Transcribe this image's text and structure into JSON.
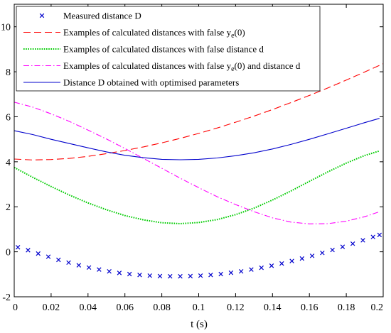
{
  "chart_data": {
    "type": "line",
    "title": "",
    "xlabel": "t (s)",
    "ylabel": "",
    "xlim": [
      0,
      0.2
    ],
    "ylim": [
      -2,
      11
    ],
    "xticks": [
      "0",
      "0.02",
      "0.04",
      "0.06",
      "0.08",
      "0.1",
      "0.12",
      "0.14",
      "0.16",
      "0.18",
      "0.2"
    ],
    "yticks": [
      "-2",
      "0",
      "2",
      "4",
      "6",
      "8",
      "10"
    ],
    "grid": false,
    "legend_position": "top-left",
    "series": [
      {
        "name": "Measured distance D",
        "style": "marker-x",
        "color": "#0000cc",
        "x": [
          0.002,
          0.0075,
          0.013,
          0.0185,
          0.024,
          0.0295,
          0.035,
          0.0405,
          0.046,
          0.0515,
          0.057,
          0.0625,
          0.068,
          0.0735,
          0.079,
          0.0845,
          0.09,
          0.0955,
          0.101,
          0.1065,
          0.112,
          0.1175,
          0.123,
          0.1285,
          0.134,
          0.1395,
          0.145,
          0.1505,
          0.156,
          0.1615,
          0.167,
          0.1725,
          0.178,
          0.1835,
          0.189,
          0.1945,
          0.198
        ],
        "y": [
          0.2,
          0.07,
          -0.08,
          -0.22,
          -0.36,
          -0.48,
          -0.6,
          -0.7,
          -0.79,
          -0.87,
          -0.94,
          -0.99,
          -1.03,
          -1.06,
          -1.08,
          -1.09,
          -1.09,
          -1.08,
          -1.06,
          -1.03,
          -0.99,
          -0.93,
          -0.87,
          -0.79,
          -0.71,
          -0.62,
          -0.52,
          -0.41,
          -0.3,
          -0.18,
          -0.05,
          0.08,
          0.22,
          0.36,
          0.51,
          0.66,
          0.75
        ]
      },
      {
        "name": "Examples of calculated distances with false y_e(0)",
        "style": "dashed",
        "color": "#ff0000",
        "x": [
          0,
          0.01,
          0.02,
          0.03,
          0.04,
          0.05,
          0.06,
          0.07,
          0.08,
          0.09,
          0.1,
          0.11,
          0.12,
          0.13,
          0.14,
          0.15,
          0.16,
          0.17,
          0.18,
          0.19,
          0.2
        ],
        "y": [
          4.12,
          4.08,
          4.1,
          4.15,
          4.24,
          4.36,
          4.5,
          4.66,
          4.84,
          5.04,
          5.26,
          5.5,
          5.76,
          6.03,
          6.32,
          6.63,
          6.95,
          7.28,
          7.63,
          7.99,
          8.36
        ]
      },
      {
        "name": "Examples of calculated distances with false distance d",
        "style": "dotted",
        "color": "#00cc00",
        "x": [
          0,
          0.01,
          0.02,
          0.03,
          0.04,
          0.05,
          0.06,
          0.07,
          0.08,
          0.09,
          0.1,
          0.11,
          0.12,
          0.13,
          0.14,
          0.15,
          0.16,
          0.17,
          0.18,
          0.19,
          0.198
        ],
        "y": [
          3.75,
          3.31,
          2.9,
          2.52,
          2.17,
          1.87,
          1.61,
          1.42,
          1.29,
          1.25,
          1.3,
          1.43,
          1.65,
          1.94,
          2.3,
          2.7,
          3.13,
          3.55,
          3.94,
          4.28,
          4.48
        ]
      },
      {
        "name": "Examples of calculated distances with false y_e(0) and distance d",
        "style": "dash-dot",
        "color": "#ff00ff",
        "x": [
          0,
          0.01,
          0.02,
          0.03,
          0.04,
          0.05,
          0.06,
          0.07,
          0.08,
          0.09,
          0.1,
          0.11,
          0.12,
          0.13,
          0.14,
          0.15,
          0.16,
          0.17,
          0.18,
          0.19,
          0.198
        ],
        "y": [
          6.65,
          6.43,
          6.13,
          5.79,
          5.41,
          5.01,
          4.59,
          4.15,
          3.71,
          3.27,
          2.85,
          2.45,
          2.1,
          1.78,
          1.51,
          1.32,
          1.24,
          1.25,
          1.36,
          1.56,
          1.78
        ]
      },
      {
        "name": "Distance D obtained with optimised parameters",
        "style": "solid",
        "color": "#0000cc",
        "x": [
          0,
          0.01,
          0.02,
          0.03,
          0.04,
          0.05,
          0.06,
          0.07,
          0.08,
          0.09,
          0.1,
          0.11,
          0.12,
          0.13,
          0.14,
          0.15,
          0.16,
          0.17,
          0.18,
          0.19,
          0.198
        ],
        "y": [
          5.38,
          5.21,
          5.0,
          4.81,
          4.62,
          4.44,
          4.29,
          4.18,
          4.11,
          4.09,
          4.11,
          4.17,
          4.27,
          4.4,
          4.57,
          4.77,
          5.0,
          5.24,
          5.49,
          5.74,
          5.93
        ]
      }
    ],
    "legend": [
      {
        "text": "Measured distance D",
        "sub": "",
        "rest": ""
      },
      {
        "text": "Examples of calculated distances with false y",
        "sub": "e",
        "rest": "(0)"
      },
      {
        "text": "Examples of calculated distances with false distance d",
        "sub": "",
        "rest": ""
      },
      {
        "text": "Examples of calculated distances with false y",
        "sub": "e",
        "rest": "(0) and distance d"
      },
      {
        "text": "Distance D obtained with optimised parameters",
        "sub": "",
        "rest": ""
      }
    ]
  }
}
